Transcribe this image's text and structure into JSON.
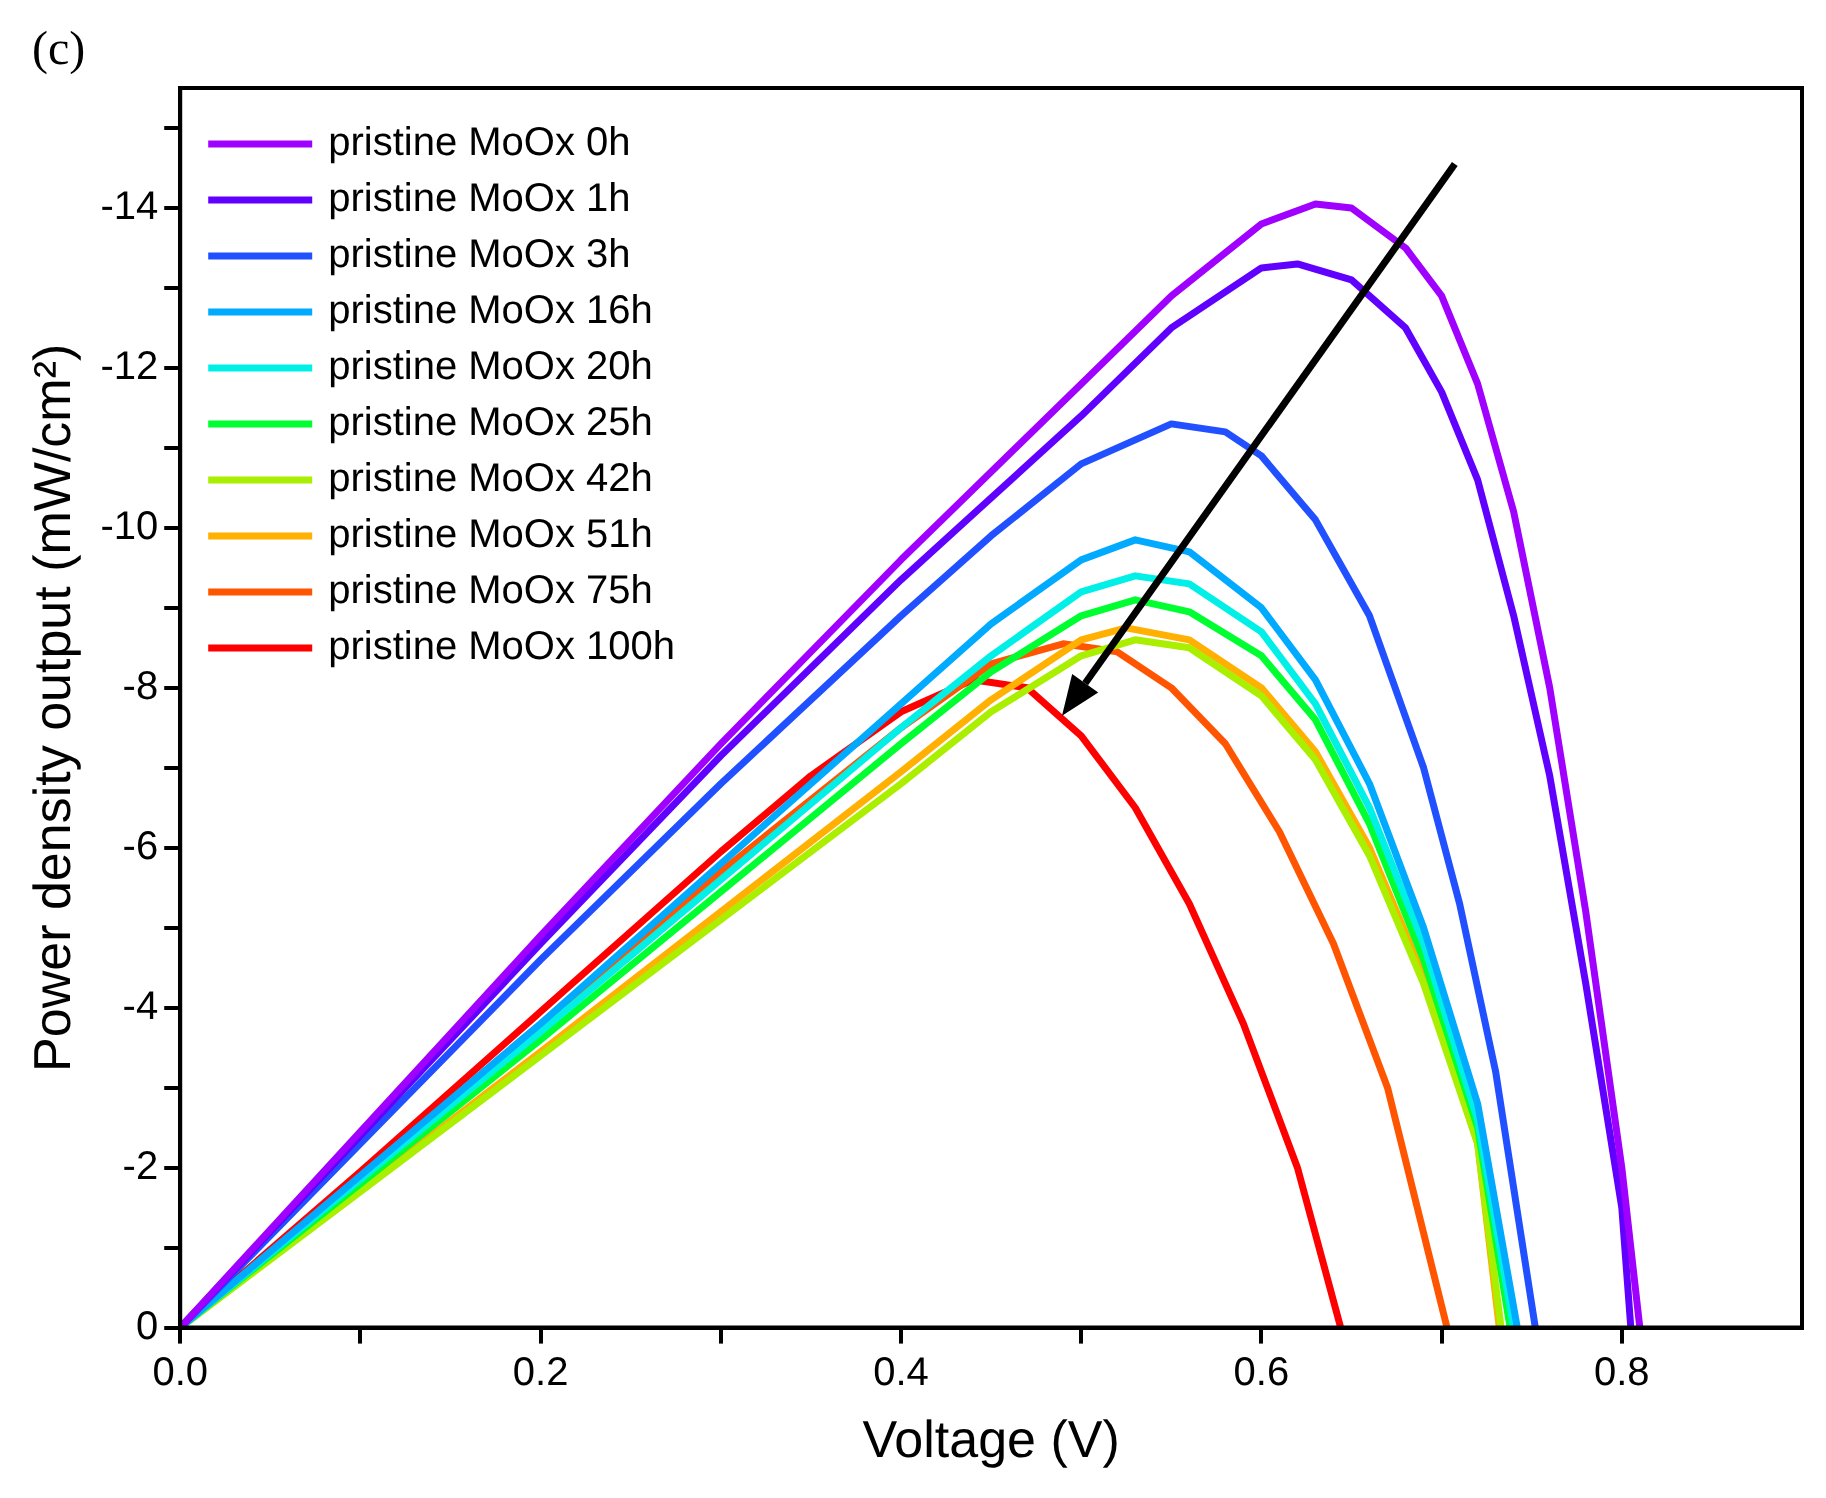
{
  "chart_data": {
    "type": "line",
    "title": "(c)",
    "xlabel": "Voltage (V)",
    "ylabel": "Power density output (mW/cm²)",
    "xlim": [
      0,
      0.9
    ],
    "ylim": [
      0,
      -15.5
    ],
    "xticks": [
      {
        "value": 0,
        "label": "0.0"
      },
      {
        "value": 0.1,
        "label": null
      },
      {
        "value": 0.2,
        "label": "0.2"
      },
      {
        "value": 0.3,
        "label": null
      },
      {
        "value": 0.4,
        "label": "0.4"
      },
      {
        "value": 0.5,
        "label": null
      },
      {
        "value": 0.6,
        "label": "0.6"
      },
      {
        "value": 0.7,
        "label": null
      },
      {
        "value": 0.8,
        "label": "0.8"
      }
    ],
    "yticks": [
      0,
      {
        "value": -1,
        "label": null
      },
      -2,
      {
        "value": -3,
        "label": null
      },
      -4,
      {
        "value": -5,
        "label": null
      },
      -6,
      {
        "value": -7,
        "label": null
      },
      -8,
      {
        "value": -9,
        "label": null
      },
      -10,
      {
        "value": -11,
        "label": null
      },
      -12,
      {
        "value": -13,
        "label": null
      },
      -14,
      {
        "value": -15,
        "label": null
      }
    ],
    "grid": false,
    "legend": "top left",
    "marker": "none",
    "line_style": "solid",
    "series": [
      {
        "name": "pristine MoOx 0h",
        "color": "#a000ff",
        "x": [
          0,
          0.1,
          0.2,
          0.3,
          0.4,
          0.5,
          0.55,
          0.6,
          0.63,
          0.65,
          0.68,
          0.7,
          0.72,
          0.74,
          0.76,
          0.78,
          0.8,
          0.81
        ],
        "values": [
          0,
          -2.45,
          -4.9,
          -7.3,
          -9.6,
          -11.8,
          -12.9,
          -13.8,
          -14.05,
          -14.0,
          -13.5,
          -12.9,
          -11.8,
          -10.2,
          -8.0,
          -5.2,
          -2.0,
          0
        ]
      },
      {
        "name": "pristine MoOx 1h",
        "color": "#6000ff",
        "x": [
          0,
          0.1,
          0.2,
          0.3,
          0.4,
          0.5,
          0.55,
          0.6,
          0.62,
          0.65,
          0.68,
          0.7,
          0.72,
          0.74,
          0.76,
          0.78,
          0.8,
          0.805
        ],
        "values": [
          0,
          -2.4,
          -4.8,
          -7.15,
          -9.35,
          -11.4,
          -12.5,
          -13.25,
          -13.3,
          -13.1,
          -12.5,
          -11.7,
          -10.6,
          -8.9,
          -6.9,
          -4.3,
          -1.5,
          0
        ]
      },
      {
        "name": "pristine MoOx 3h",
        "color": "#2050ff",
        "x": [
          0,
          0.1,
          0.2,
          0.3,
          0.4,
          0.45,
          0.5,
          0.55,
          0.58,
          0.6,
          0.63,
          0.66,
          0.69,
          0.71,
          0.73,
          0.752
        ],
        "values": [
          0,
          -2.3,
          -4.6,
          -6.8,
          -8.9,
          -9.9,
          -10.8,
          -11.3,
          -11.2,
          -10.9,
          -10.1,
          -8.9,
          -7.0,
          -5.3,
          -3.2,
          0
        ]
      },
      {
        "name": "pristine MoOx 16h",
        "color": "#00aaff",
        "x": [
          0,
          0.1,
          0.2,
          0.3,
          0.4,
          0.45,
          0.5,
          0.53,
          0.56,
          0.6,
          0.63,
          0.66,
          0.69,
          0.72,
          0.742
        ],
        "values": [
          0,
          -1.9,
          -3.8,
          -5.8,
          -7.8,
          -8.8,
          -9.6,
          -9.85,
          -9.7,
          -9.0,
          -8.1,
          -6.8,
          -5.0,
          -2.8,
          0
        ]
      },
      {
        "name": "pristine MoOx 20h",
        "color": "#00f0e8",
        "x": [
          0,
          0.1,
          0.2,
          0.3,
          0.4,
          0.45,
          0.5,
          0.53,
          0.56,
          0.6,
          0.63,
          0.66,
          0.69,
          0.72,
          0.74
        ],
        "values": [
          0,
          -1.85,
          -3.7,
          -5.6,
          -7.5,
          -8.4,
          -9.2,
          -9.4,
          -9.3,
          -8.7,
          -7.8,
          -6.5,
          -4.8,
          -2.6,
          0
        ]
      },
      {
        "name": "pristine MoOx 25h",
        "color": "#00ff30",
        "x": [
          0,
          0.1,
          0.2,
          0.3,
          0.4,
          0.45,
          0.5,
          0.53,
          0.56,
          0.6,
          0.63,
          0.66,
          0.69,
          0.72,
          0.738
        ],
        "values": [
          0,
          -1.8,
          -3.6,
          -5.45,
          -7.3,
          -8.2,
          -8.9,
          -9.1,
          -8.95,
          -8.4,
          -7.6,
          -6.3,
          -4.6,
          -2.5,
          0
        ]
      },
      {
        "name": "pristine MoOx 42h",
        "color": "#aaee00",
        "x": [
          0,
          0.1,
          0.2,
          0.3,
          0.4,
          0.45,
          0.5,
          0.53,
          0.56,
          0.6,
          0.63,
          0.66,
          0.69,
          0.72,
          0.733
        ],
        "values": [
          0,
          -1.7,
          -3.4,
          -5.1,
          -6.8,
          -7.7,
          -8.4,
          -8.6,
          -8.5,
          -7.9,
          -7.1,
          -5.9,
          -4.3,
          -2.3,
          0
        ]
      },
      {
        "name": "pristine MoOx 51h",
        "color": "#ffb000",
        "x": [
          0,
          0.1,
          0.2,
          0.3,
          0.4,
          0.45,
          0.5,
          0.525,
          0.56,
          0.6,
          0.63,
          0.66,
          0.69,
          0.72,
          0.732
        ],
        "values": [
          0,
          -1.72,
          -3.45,
          -5.2,
          -6.95,
          -7.85,
          -8.6,
          -8.75,
          -8.6,
          -8.0,
          -7.2,
          -6.0,
          -4.4,
          -2.3,
          0
        ]
      },
      {
        "name": "pristine MoOx 75h",
        "color": "#ff5500",
        "x": [
          0,
          0.1,
          0.2,
          0.3,
          0.4,
          0.45,
          0.49,
          0.52,
          0.55,
          0.58,
          0.61,
          0.64,
          0.67,
          0.703
        ],
        "values": [
          0,
          -1.85,
          -3.75,
          -5.7,
          -7.5,
          -8.3,
          -8.55,
          -8.45,
          -8.0,
          -7.3,
          -6.2,
          -4.8,
          -3.0,
          0
        ]
      },
      {
        "name": "pristine MoOx 100h",
        "color": "#ff0000",
        "x": [
          0,
          0.1,
          0.2,
          0.3,
          0.35,
          0.4,
          0.44,
          0.47,
          0.5,
          0.53,
          0.56,
          0.59,
          0.62,
          0.644
        ],
        "values": [
          0,
          -1.95,
          -3.95,
          -5.95,
          -6.9,
          -7.7,
          -8.1,
          -8.0,
          -7.4,
          -6.5,
          -5.3,
          -3.8,
          -2.0,
          0
        ]
      }
    ]
  }
}
